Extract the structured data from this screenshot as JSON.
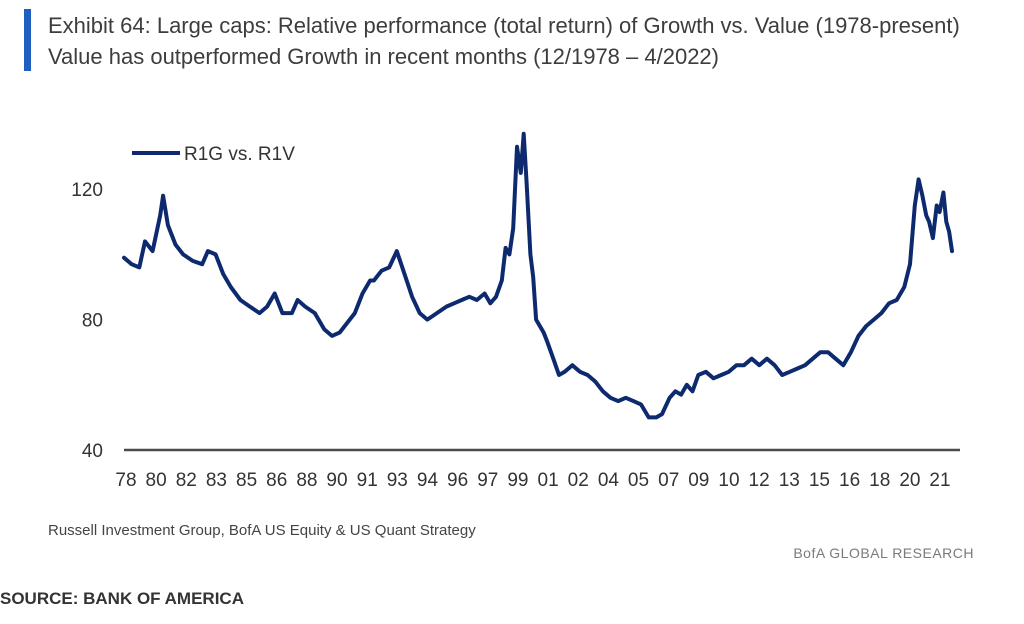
{
  "header": {
    "title": "Exhibit 64: Large caps: Relative performance (total return) of Growth vs. Value (1978-present)",
    "subtitle": "Value has outperformed Growth in recent months (12/1978 – 4/2022)"
  },
  "colors": {
    "accent": "#1f5fbf",
    "series": "#0e2a6e",
    "axis": "#4a4a4a"
  },
  "chart_data": {
    "type": "line",
    "title": "Exhibit 64: Large caps: Relative performance (total return) of Growth vs. Value (1978-present)",
    "subtitle": "Value has outperformed Growth in recent months (12/1978 – 4/2022)",
    "xlabel": "",
    "ylabel": "",
    "xlim": [
      1978.9,
      2022.3
    ],
    "ylim": [
      40,
      140
    ],
    "y_ticks": [
      40,
      80,
      120
    ],
    "x_tick_labels": [
      "78",
      "80",
      "82",
      "83",
      "85",
      "86",
      "88",
      "90",
      "91",
      "93",
      "94",
      "96",
      "97",
      "99",
      "01",
      "02",
      "04",
      "05",
      "07",
      "09",
      "10",
      "12",
      "13",
      "15",
      "16",
      "18",
      "20",
      "21"
    ],
    "legend_position": "top-left",
    "series": [
      {
        "name": "R1G vs. R1V",
        "x": [
          1978.9,
          1979.3,
          1979.7,
          1980.0,
          1980.4,
          1980.8,
          1980.95,
          1981.2,
          1981.6,
          1982.0,
          1982.5,
          1983.0,
          1983.3,
          1983.7,
          1984.1,
          1984.5,
          1985.0,
          1985.5,
          1986.0,
          1986.4,
          1986.8,
          1987.2,
          1987.7,
          1988.0,
          1988.4,
          1988.9,
          1989.4,
          1989.8,
          1990.2,
          1990.6,
          1991.0,
          1991.4,
          1991.8,
          1992.0,
          1992.4,
          1992.8,
          1993.2,
          1993.6,
          1994.0,
          1994.4,
          1994.8,
          1995.3,
          1995.8,
          1996.2,
          1996.6,
          1997.0,
          1997.4,
          1997.8,
          1998.1,
          1998.4,
          1998.7,
          1998.9,
          1999.1,
          1999.3,
          1999.5,
          1999.7,
          1999.85,
          2000.0,
          2000.2,
          2000.35,
          2000.5,
          2000.7,
          2000.9,
          2001.1,
          2001.4,
          2001.7,
          2002.0,
          2002.4,
          2002.8,
          2003.2,
          2003.6,
          2004.0,
          2004.4,
          2004.8,
          2005.2,
          2005.6,
          2006.0,
          2006.4,
          2006.8,
          2007.1,
          2007.5,
          2007.8,
          2008.1,
          2008.4,
          2008.7,
          2009.0,
          2009.4,
          2009.8,
          2010.2,
          2010.6,
          2011.0,
          2011.4,
          2011.8,
          2012.2,
          2012.6,
          2013.0,
          2013.4,
          2013.8,
          2014.2,
          2014.6,
          2015.0,
          2015.4,
          2015.8,
          2016.2,
          2016.6,
          2017.0,
          2017.4,
          2017.8,
          2018.2,
          2018.6,
          2019.0,
          2019.4,
          2019.8,
          2020.1,
          2020.35,
          2020.55,
          2020.75,
          2020.95,
          2021.1,
          2021.3,
          2021.5,
          2021.65,
          2021.85,
          2022.0,
          2022.15,
          2022.3
        ],
        "values": [
          99,
          97,
          96,
          104,
          101,
          112,
          118,
          109,
          103,
          100,
          98,
          97,
          101,
          100,
          94,
          90,
          86,
          84,
          82,
          84,
          88,
          82,
          82,
          86,
          84,
          82,
          77,
          75,
          76,
          79,
          82,
          88,
          92,
          92,
          95,
          96,
          101,
          94,
          87,
          82,
          80,
          82,
          84,
          85,
          86,
          87,
          86,
          88,
          85,
          87,
          92,
          102,
          100,
          108,
          133,
          125,
          137,
          122,
          100,
          93,
          80,
          78,
          76,
          73,
          68,
          63,
          64,
          66,
          64,
          63,
          61,
          58,
          56,
          55,
          56,
          55,
          54,
          50,
          50,
          51,
          56,
          58,
          57,
          60,
          58,
          63,
          64,
          62,
          63,
          64,
          66,
          66,
          68,
          66,
          68,
          66,
          63,
          64,
          65,
          66,
          68,
          70,
          70,
          68,
          66,
          70,
          75,
          78,
          80,
          82,
          85,
          86,
          90,
          97,
          115,
          123,
          118,
          112,
          110,
          105,
          115,
          113,
          119,
          110,
          107,
          101
        ]
      }
    ]
  },
  "source_note": "Russell Investment Group, BofA US Equity & US Quant Strategy",
  "brand": "BofA GLOBAL RESEARCH",
  "footer": "SOURCE: BANK OF AMERICA"
}
